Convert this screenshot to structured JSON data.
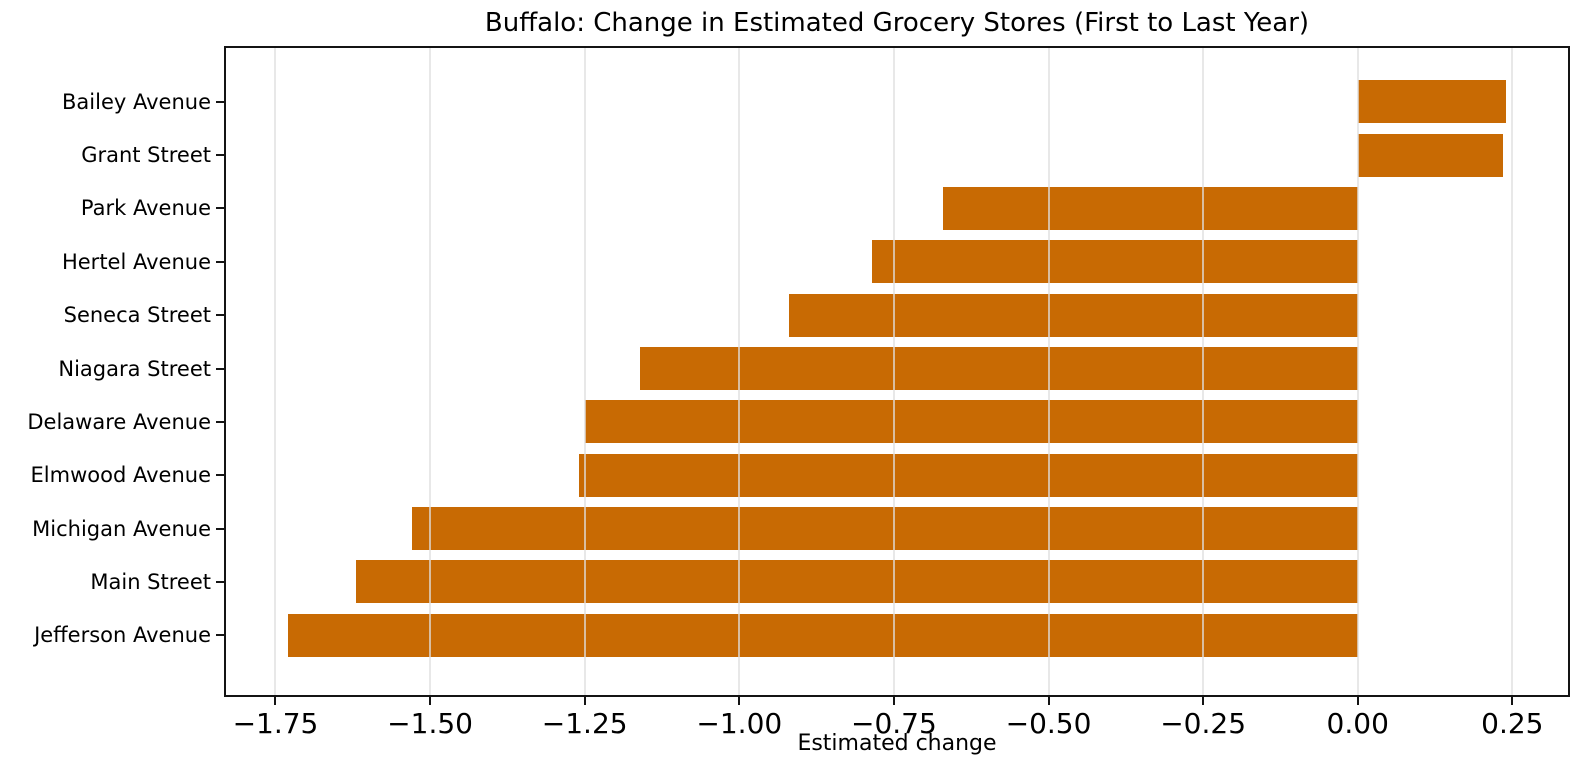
{
  "chart_data": {
    "type": "bar",
    "orientation": "horizontal",
    "title": "Buffalo: Change in Estimated Grocery Stores (First to Last Year)",
    "xlabel": "Estimated change",
    "ylabel": "",
    "categories": [
      "Bailey Avenue",
      "Grant Street",
      "Park Avenue",
      "Hertel Avenue",
      "Seneca Street",
      "Niagara Street",
      "Delaware Avenue",
      "Elmwood Avenue",
      "Michigan Avenue",
      "Main Street",
      "Jefferson Avenue"
    ],
    "values": [
      0.24,
      0.235,
      -0.67,
      -0.785,
      -0.92,
      -1.16,
      -1.25,
      -1.26,
      -1.53,
      -1.62,
      -1.73
    ],
    "xlim": [
      -1.83,
      0.34
    ],
    "xticks": [
      -1.75,
      -1.5,
      -1.25,
      -1.0,
      -0.75,
      -0.5,
      -0.25,
      0.0,
      0.25
    ],
    "xtick_labels": [
      "−1.75",
      "−1.50",
      "−1.25",
      "−1.00",
      "−0.75",
      "−0.50",
      "−0.25",
      "0.00",
      "0.25"
    ],
    "bar_color": "#C86A03",
    "grid": true,
    "grid_on_top": true,
    "legend": false,
    "background": "#FFFFFF"
  }
}
